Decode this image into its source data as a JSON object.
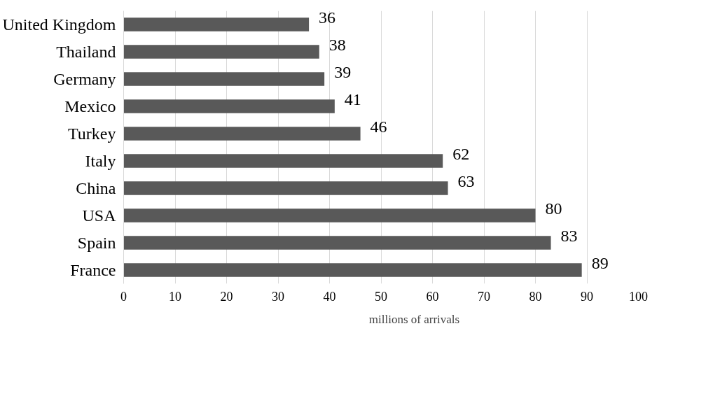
{
  "chart_data": {
    "type": "bar",
    "orientation": "horizontal",
    "categories": [
      "United Kingdom",
      "Thailand",
      "Germany",
      "Mexico",
      "Turkey",
      "Italy",
      "China",
      "USA",
      "Spain",
      "France"
    ],
    "series": [
      {
        "name": "millions of arrivals",
        "color": "#595959",
        "values": [
          36,
          38,
          39,
          41,
          46,
          62,
          63,
          80,
          83,
          89
        ]
      }
    ],
    "xlim": [
      0,
      100
    ],
    "xticks": [
      0,
      10,
      20,
      30,
      40,
      50,
      60,
      70,
      80,
      90,
      100
    ],
    "grid": "x",
    "legend": "bottom",
    "data_labels": true
  }
}
